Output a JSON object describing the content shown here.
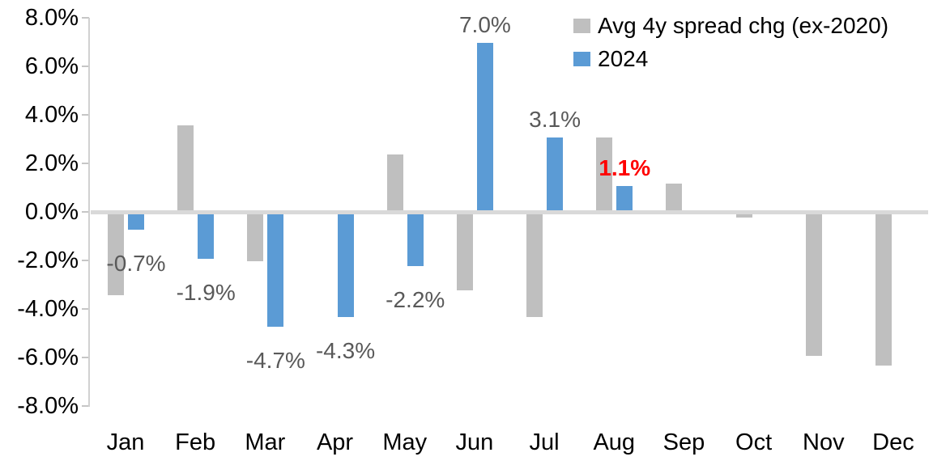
{
  "chart_data": {
    "type": "bar",
    "title": "",
    "xlabel": "",
    "ylabel": "",
    "categories": [
      "Jan",
      "Feb",
      "Mar",
      "Apr",
      "May",
      "Jun",
      "Jul",
      "Aug",
      "Sep",
      "Oct",
      "Nov",
      "Dec"
    ],
    "series": [
      {
        "name": "Avg 4y spread chg (ex-2020)",
        "color": "#BFBFBF",
        "values": [
          -3.4,
          3.6,
          -2.0,
          0.0,
          2.4,
          -3.2,
          -4.3,
          3.1,
          1.2,
          -0.2,
          -5.9,
          -6.3
        ]
      },
      {
        "name": "2024",
        "color": "#5B9BD5",
        "values": [
          -0.7,
          -1.9,
          -4.7,
          -4.3,
          -2.2,
          7.0,
          3.1,
          1.1,
          null,
          null,
          null,
          null
        ],
        "labels": [
          {
            "text": "-0.7%",
            "color": "#595959",
            "bold": false
          },
          {
            "text": "-1.9%",
            "color": "#595959",
            "bold": false
          },
          {
            "text": "-4.7%",
            "color": "#595959",
            "bold": false
          },
          {
            "text": "-4.3%",
            "color": "#595959",
            "bold": false
          },
          {
            "text": "-2.2%",
            "color": "#595959",
            "bold": false
          },
          {
            "text": "7.0%",
            "color": "#595959",
            "bold": false
          },
          {
            "text": "3.1%",
            "color": "#595959",
            "bold": false
          },
          {
            "text": "1.1%",
            "color": "#FF0000",
            "bold": true
          }
        ]
      }
    ],
    "ylim": [
      -8,
      8
    ],
    "ytick_step": 2,
    "yticks": [
      "8.0%",
      "6.0%",
      "4.0%",
      "2.0%",
      "0.0%",
      "-2.0%",
      "-4.0%",
      "-6.0%",
      "-8.0%"
    ],
    "grid": false,
    "legend_position": "top-right",
    "colors": {
      "background": "#FFFFFF",
      "axis_line": "#D1D1D1",
      "zero_line": "#D9D9D9",
      "tick_mark": "#C6C6C6",
      "axis_text": "#000000",
      "data_label_text": "#595959",
      "highlight_label_text": "#FF0000"
    }
  }
}
